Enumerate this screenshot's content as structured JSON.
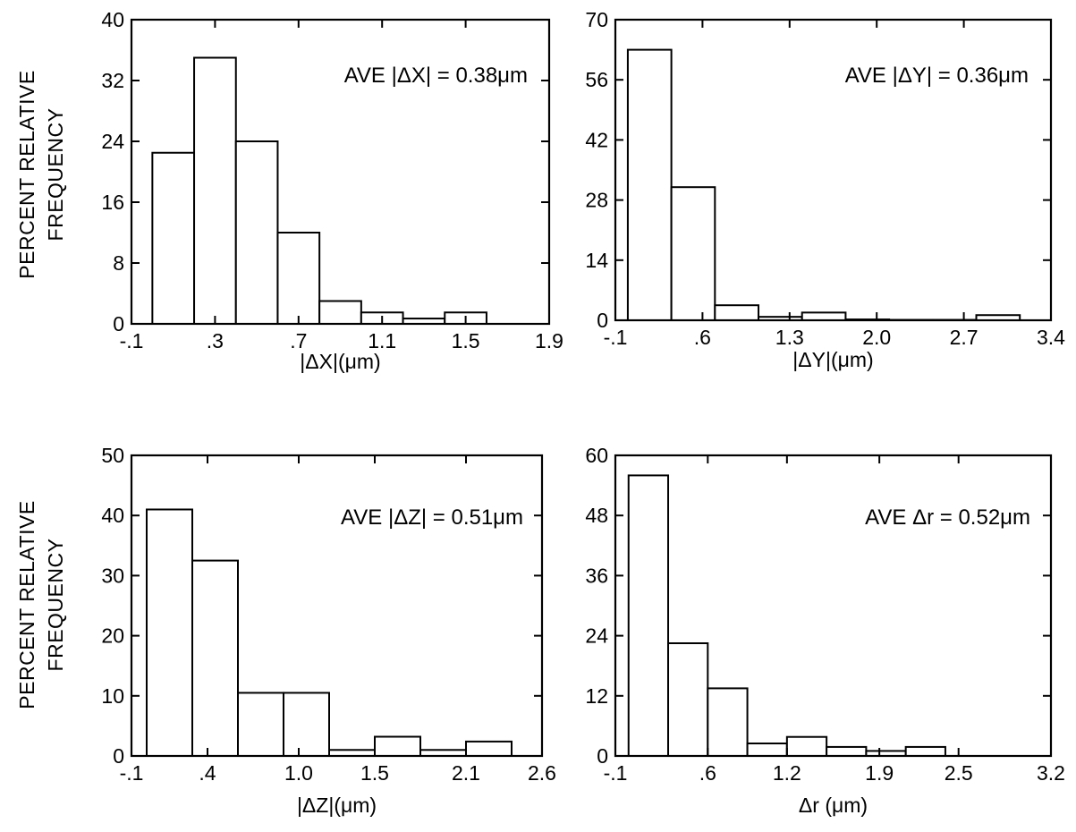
{
  "ylabel_lines": [
    "PERCENT RELATIVE",
    "FREQUENCY"
  ],
  "chart_data": [
    {
      "type": "bar",
      "xlabel": "|ΔX|(μm)",
      "ylabel": "PERCENT RELATIVE FREQUENCY",
      "annotation": "AVE |ΔX| = 0.38μm",
      "xlim": [
        -0.1,
        1.9
      ],
      "ylim": [
        0,
        40
      ],
      "xticks": [
        -0.1,
        0.3,
        0.7,
        1.1,
        1.5,
        1.9
      ],
      "xtick_labels": [
        "-.1",
        ".3",
        ".7",
        "1.1",
        "1.5",
        "1.9"
      ],
      "yticks": [
        0,
        8,
        16,
        24,
        32,
        40
      ],
      "ytick_labels": [
        "0",
        "8",
        "16",
        "24",
        "32",
        "40"
      ],
      "bins": [
        [
          0.0,
          0.2
        ],
        [
          0.2,
          0.4
        ],
        [
          0.4,
          0.6
        ],
        [
          0.6,
          0.8
        ],
        [
          0.8,
          1.0
        ],
        [
          1.0,
          1.2
        ],
        [
          1.2,
          1.4
        ],
        [
          1.4,
          1.6
        ]
      ],
      "values": [
        22.5,
        35,
        24,
        12,
        3,
        1.5,
        0.7,
        1.5
      ]
    },
    {
      "type": "bar",
      "xlabel": "|ΔY|(μm)",
      "annotation": "AVE |ΔY| = 0.36μm",
      "xlim": [
        -0.1,
        3.4
      ],
      "ylim": [
        0,
        70
      ],
      "xticks": [
        -0.1,
        0.6,
        1.3,
        2.0,
        2.7,
        3.4
      ],
      "xtick_labels": [
        "-.1",
        ".6",
        "1.3",
        "2.0",
        "2.7",
        "3.4"
      ],
      "yticks": [
        0,
        14,
        28,
        42,
        56,
        70
      ],
      "ytick_labels": [
        "0",
        "14",
        "28",
        "42",
        "56",
        "70"
      ],
      "bins": [
        [
          0.0,
          0.35
        ],
        [
          0.35,
          0.7
        ],
        [
          0.7,
          1.05
        ],
        [
          1.05,
          1.4
        ],
        [
          1.4,
          1.75
        ],
        [
          1.75,
          2.1
        ],
        [
          2.1,
          2.45
        ],
        [
          2.45,
          2.8
        ],
        [
          2.8,
          3.15
        ]
      ],
      "values": [
        63,
        31,
        3.5,
        0.8,
        1.8,
        0.2,
        0.1,
        0.1,
        1.2
      ]
    },
    {
      "type": "bar",
      "xlabel": "|ΔZ|(μm)",
      "ylabel": "PERCENT RELATIVE FREQUENCY",
      "annotation": "AVE |ΔZ| = 0.51μm",
      "xlim": [
        -0.1,
        2.6
      ],
      "ylim": [
        0,
        50
      ],
      "xticks": [
        -0.1,
        0.4,
        1.0,
        1.5,
        2.1,
        2.6
      ],
      "xtick_labels": [
        "-.1",
        ".4",
        "1.0",
        "1.5",
        "2.1",
        "2.6"
      ],
      "yticks": [
        0,
        10,
        20,
        30,
        40,
        50
      ],
      "ytick_labels": [
        "0",
        "10",
        "20",
        "30",
        "40",
        "50"
      ],
      "bins": [
        [
          0.0,
          0.3
        ],
        [
          0.3,
          0.6
        ],
        [
          0.6,
          0.9
        ],
        [
          0.9,
          1.2
        ],
        [
          1.2,
          1.5
        ],
        [
          1.5,
          1.8
        ],
        [
          1.8,
          2.1
        ],
        [
          2.1,
          2.4
        ]
      ],
      "values": [
        41,
        32.5,
        10.5,
        10.5,
        1,
        3.2,
        1,
        2.4
      ]
    },
    {
      "type": "bar",
      "xlabel": "Δr (μm)",
      "annotation": "AVE Δr = 0.52μm",
      "xlim": [
        -0.1,
        3.2
      ],
      "ylim": [
        0,
        60
      ],
      "xticks": [
        -0.1,
        0.6,
        1.2,
        1.9,
        2.5,
        3.2
      ],
      "xtick_labels": [
        "-.1",
        ".6",
        "1.2",
        "1.9",
        "2.5",
        "3.2"
      ],
      "yticks": [
        0,
        12,
        24,
        36,
        48,
        60
      ],
      "ytick_labels": [
        "0",
        "12",
        "24",
        "36",
        "48",
        "60"
      ],
      "bins": [
        [
          0.0,
          0.3
        ],
        [
          0.3,
          0.6
        ],
        [
          0.6,
          0.9
        ],
        [
          0.9,
          1.2
        ],
        [
          1.2,
          1.5
        ],
        [
          1.5,
          1.8
        ],
        [
          1.8,
          2.1
        ],
        [
          2.1,
          2.4
        ],
        [
          2.4,
          2.7
        ]
      ],
      "values": [
        56,
        22.5,
        13.5,
        2.5,
        3.8,
        1.8,
        1,
        1.8,
        0
      ]
    }
  ]
}
